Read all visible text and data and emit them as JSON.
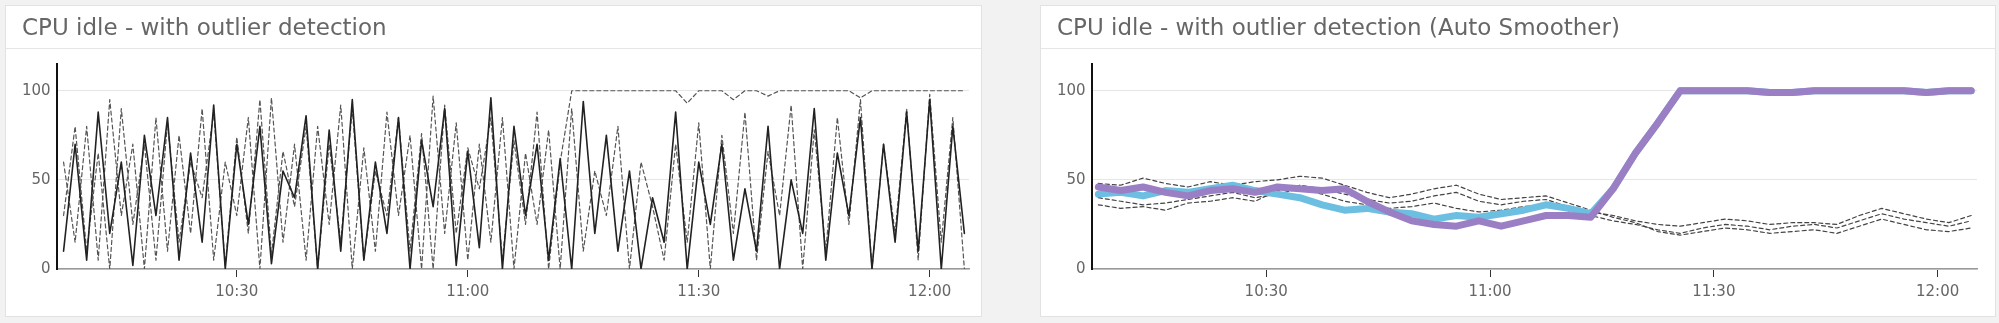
{
  "chart_data": [
    {
      "type": "line",
      "title": "CPU idle - with outlier detection",
      "xlim": [
        10.11,
        12.085
      ],
      "xticks": [
        {
          "value": 10.5,
          "label": "10:30"
        },
        {
          "value": 11,
          "label": "11:00"
        },
        {
          "value": 11.5,
          "label": "11:30"
        },
        {
          "value": 12,
          "label": "12:00"
        }
      ],
      "ylim": [
        0,
        115
      ],
      "yticks": [
        0,
        50,
        100
      ],
      "grid": "y",
      "legend": false,
      "marker": "none",
      "x": [
        10.125,
        10.15,
        10.175,
        10.2,
        10.225,
        10.25,
        10.275,
        10.3,
        10.325,
        10.35,
        10.375,
        10.4,
        10.425,
        10.45,
        10.475,
        10.5,
        10.525,
        10.55,
        10.575,
        10.6,
        10.625,
        10.65,
        10.675,
        10.7,
        10.725,
        10.75,
        10.775,
        10.8,
        10.825,
        10.85,
        10.875,
        10.9,
        10.925,
        10.95,
        10.975,
        11,
        11.025,
        11.05,
        11.075,
        11.1,
        11.125,
        11.15,
        11.175,
        11.2,
        11.225,
        11.25,
        11.275,
        11.3,
        11.325,
        11.35,
        11.375,
        11.4,
        11.425,
        11.45,
        11.475,
        11.5,
        11.525,
        11.55,
        11.575,
        11.6,
        11.625,
        11.65,
        11.675,
        11.7,
        11.725,
        11.75,
        11.775,
        11.8,
        11.825,
        11.85,
        11.875,
        11.9,
        11.925,
        11.95,
        11.975,
        12,
        12.025,
        12.05,
        12.075
      ],
      "series": [
        {
          "color": "#555555",
          "line_style": "dashed",
          "values": [
            60,
            15,
            80,
            5,
            95,
            30,
            70,
            0,
            85,
            10,
            75,
            20,
            90,
            5,
            60,
            30,
            85,
            0,
            96,
            15,
            70,
            5,
            80,
            25,
            92,
            0,
            68,
            10,
            88,
            30,
            75,
            0,
            97,
            20,
            82,
            5,
            70,
            15,
            85,
            0,
            65,
            25,
            78,
            0,
            90,
            10,
            55,
            30,
            80,
            0,
            60,
            35,
            5,
            70,
            15,
            82,
            0,
            75,
            20,
            88,
            5,
            66,
            30,
            92,
            0,
            78,
            10,
            85,
            25,
            95,
            0,
            70,
            20,
            90,
            5,
            98,
            15,
            85,
            0
          ]
        },
        {
          "color": "#555555",
          "line_style": "dashed",
          "values": [
            30,
            80,
            10,
            65,
            0,
            90,
            25,
            70,
            5,
            82,
            15,
            60,
            40,
            88,
            2,
            74,
            20,
            95,
            8,
            66,
            35,
            80,
            0,
            70,
            15,
            90,
            5,
            55,
            30,
            85,
            10,
            76,
            0,
            92,
            20,
            68,
            45,
            85,
            5,
            72,
            25,
            88,
            0,
            60,
            100,
            100,
            100,
            100,
            100,
            100,
            100,
            100,
            100,
            100,
            93,
            100,
            100,
            100,
            95,
            100,
            100,
            97,
            100,
            100,
            100,
            100,
            100,
            100,
            100,
            96,
            100,
            100,
            100,
            100,
            100,
            100,
            100,
            100,
            100
          ]
        },
        {
          "color": "#222222",
          "line_style": "solid",
          "values": [
            10,
            70,
            5,
            88,
            20,
            60,
            2,
            75,
            30,
            85,
            5,
            65,
            15,
            92,
            0,
            70,
            25,
            80,
            3,
            55,
            40,
            86,
            0,
            78,
            10,
            95,
            5,
            60,
            20,
            85,
            0,
            72,
            35,
            90,
            2,
            66,
            12,
            96,
            0,
            80,
            30,
            70,
            5,
            62,
            0,
            94,
            20,
            75,
            10,
            55,
            0,
            40,
            15,
            88,
            0,
            60,
            25,
            70,
            5,
            45,
            10,
            80,
            0,
            50,
            20,
            90,
            5,
            65,
            30,
            85,
            0,
            70,
            15,
            88,
            10,
            95,
            0,
            80,
            20
          ]
        }
      ]
    },
    {
      "type": "line",
      "title": "CPU idle - with outlier detection (Auto Smoother)",
      "xlim": [
        10.11,
        12.088
      ],
      "xticks": [
        {
          "value": 10.5,
          "label": "10:30"
        },
        {
          "value": 11,
          "label": "11:00"
        },
        {
          "value": 11.5,
          "label": "11:30"
        },
        {
          "value": 12,
          "label": "12:00"
        }
      ],
      "ylim": [
        0,
        115
      ],
      "yticks": [
        0,
        50,
        100
      ],
      "grid": "y",
      "legend": false,
      "marker": "none",
      "x": [
        10.125,
        10.175,
        10.225,
        10.275,
        10.325,
        10.375,
        10.425,
        10.475,
        10.525,
        10.575,
        10.625,
        10.675,
        10.725,
        10.775,
        10.825,
        10.875,
        10.925,
        10.975,
        11.025,
        11.075,
        11.125,
        11.175,
        11.225,
        11.275,
        11.325,
        11.375,
        11.425,
        11.475,
        11.525,
        11.575,
        11.625,
        11.675,
        11.725,
        11.775,
        11.825,
        11.875,
        11.925,
        11.975,
        12.025,
        12.075
      ],
      "series": [
        {
          "color": "#444444",
          "line_style": "dashed",
          "values": [
            40,
            38,
            36,
            37,
            39,
            41,
            43,
            40,
            42,
            45,
            42,
            38,
            36,
            34,
            35,
            37,
            34,
            32,
            33,
            35,
            36,
            33,
            30,
            27,
            25,
            22,
            20,
            23,
            25,
            24,
            22,
            24,
            25,
            23,
            27,
            31,
            28,
            26,
            24,
            27
          ]
        },
        {
          "color": "#444444",
          "line_style": "dashed",
          "values": [
            36,
            34,
            35,
            33,
            37,
            38,
            40,
            38,
            44,
            47,
            45,
            42,
            39,
            37,
            38,
            41,
            43,
            38,
            36,
            38,
            39,
            35,
            32,
            30,
            27,
            25,
            24,
            26,
            28,
            27,
            25,
            26,
            26,
            25,
            30,
            34,
            31,
            28,
            26,
            30
          ]
        },
        {
          "color": "#444444",
          "line_style": "dashed",
          "values": [
            48,
            47,
            51,
            48,
            46,
            49,
            47,
            49,
            50,
            52,
            51,
            47,
            43,
            40,
            42,
            45,
            47,
            42,
            39,
            40,
            41,
            37,
            33,
            29,
            26,
            21,
            19,
            21,
            23,
            22,
            20,
            21,
            22,
            20,
            24,
            28,
            25,
            22,
            21,
            23
          ]
        },
        {
          "color": "#6cbfe0",
          "line_style": "solid",
          "values": [
            42,
            43,
            41,
            44,
            43,
            45,
            47,
            44,
            42,
            40,
            36,
            33,
            34,
            32,
            31,
            28,
            30,
            29,
            31,
            33,
            36,
            34,
            31,
            45,
            65,
            82,
            100,
            100,
            100,
            100,
            99,
            99,
            100,
            100,
            100,
            100,
            100,
            99,
            100,
            100
          ]
        },
        {
          "color": "#9b7fc4",
          "line_style": "solid",
          "values": [
            46,
            44,
            46,
            43,
            41,
            44,
            45,
            43,
            46,
            45,
            44,
            45,
            38,
            32,
            27,
            25,
            24,
            27,
            24,
            27,
            30,
            30,
            29,
            45,
            65,
            82,
            100,
            100,
            100,
            100,
            99,
            99,
            100,
            100,
            100,
            100,
            100,
            99,
            100,
            100
          ]
        }
      ]
    }
  ]
}
